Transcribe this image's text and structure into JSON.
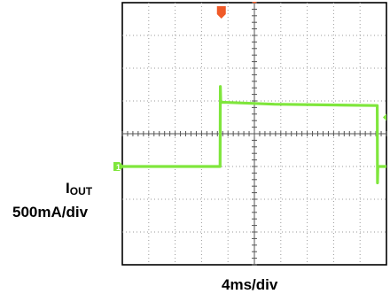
{
  "chart_data": {
    "type": "line",
    "title": "",
    "channel_label_main": "I",
    "channel_label_sub": "OUT",
    "y_scale_label": "500mA/div",
    "x_scale_label": "4ms/div",
    "grid": true,
    "divisions": {
      "x": 10,
      "y": 8
    },
    "xlim": [
      0,
      40
    ],
    "ylim": [
      -1.5,
      2.5
    ],
    "y_unit": "A",
    "x_unit": "ms",
    "series": [
      {
        "color": "#7fe63c",
        "x": [
          0,
          14.8,
          14.85,
          14.9,
          15.1,
          15.3,
          23.0,
          38.6,
          38.65,
          38.7,
          38.9,
          40
        ],
        "y": [
          0,
          0,
          1.22,
          1.0,
          0.98,
          0.98,
          0.95,
          0.93,
          -0.25,
          0.0,
          0.0,
          0
        ]
      }
    ],
    "markers": {
      "trigger_color": "#f05a28",
      "channel_marker_color": "#7fe63c",
      "channel_marker_text": "1"
    }
  }
}
